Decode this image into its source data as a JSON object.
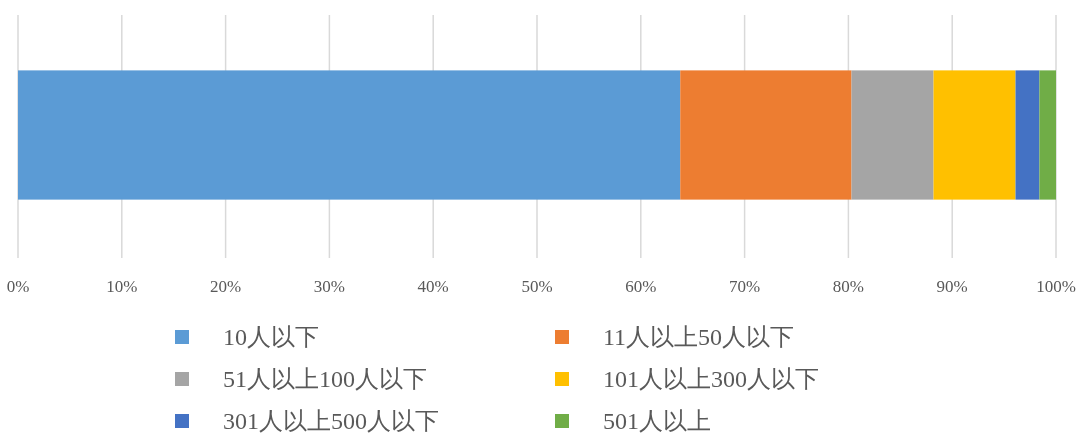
{
  "chart_data": {
    "type": "bar",
    "orientation": "horizontal",
    "stacked": true,
    "categories": [
      null
    ],
    "series": [
      {
        "name": "10人以下",
        "color": "#5b9bd5",
        "values": [
          63.8
        ]
      },
      {
        "name": "11人以上50人以下",
        "color": "#ed7d31",
        "values": [
          16.5
        ]
      },
      {
        "name": "51人以上100人以下",
        "color": "#a5a5a5",
        "values": [
          7.9
        ]
      },
      {
        "name": "101人以上300人以下",
        "color": "#ffc000",
        "values": [
          7.9
        ]
      },
      {
        "name": "301人以上500人以下",
        "color": "#4472c4",
        "values": [
          2.3
        ]
      },
      {
        "name": "501人以上",
        "color": "#70ad47",
        "values": [
          1.6
        ]
      }
    ],
    "xlim": [
      0,
      100
    ],
    "xticks": [
      {
        "value": 0,
        "label": "0%"
      },
      {
        "value": 10,
        "label": "10%"
      },
      {
        "value": 20,
        "label": "20%"
      },
      {
        "value": 30,
        "label": "30%"
      },
      {
        "value": 40,
        "label": "40%"
      },
      {
        "value": 50,
        "label": "50%"
      },
      {
        "value": 60,
        "label": "60%"
      },
      {
        "value": 70,
        "label": "70%"
      },
      {
        "value": 80,
        "label": "80%"
      },
      {
        "value": 90,
        "label": "90%"
      },
      {
        "value": 100,
        "label": "100%"
      }
    ],
    "grid": "x",
    "legend": "bottom"
  }
}
